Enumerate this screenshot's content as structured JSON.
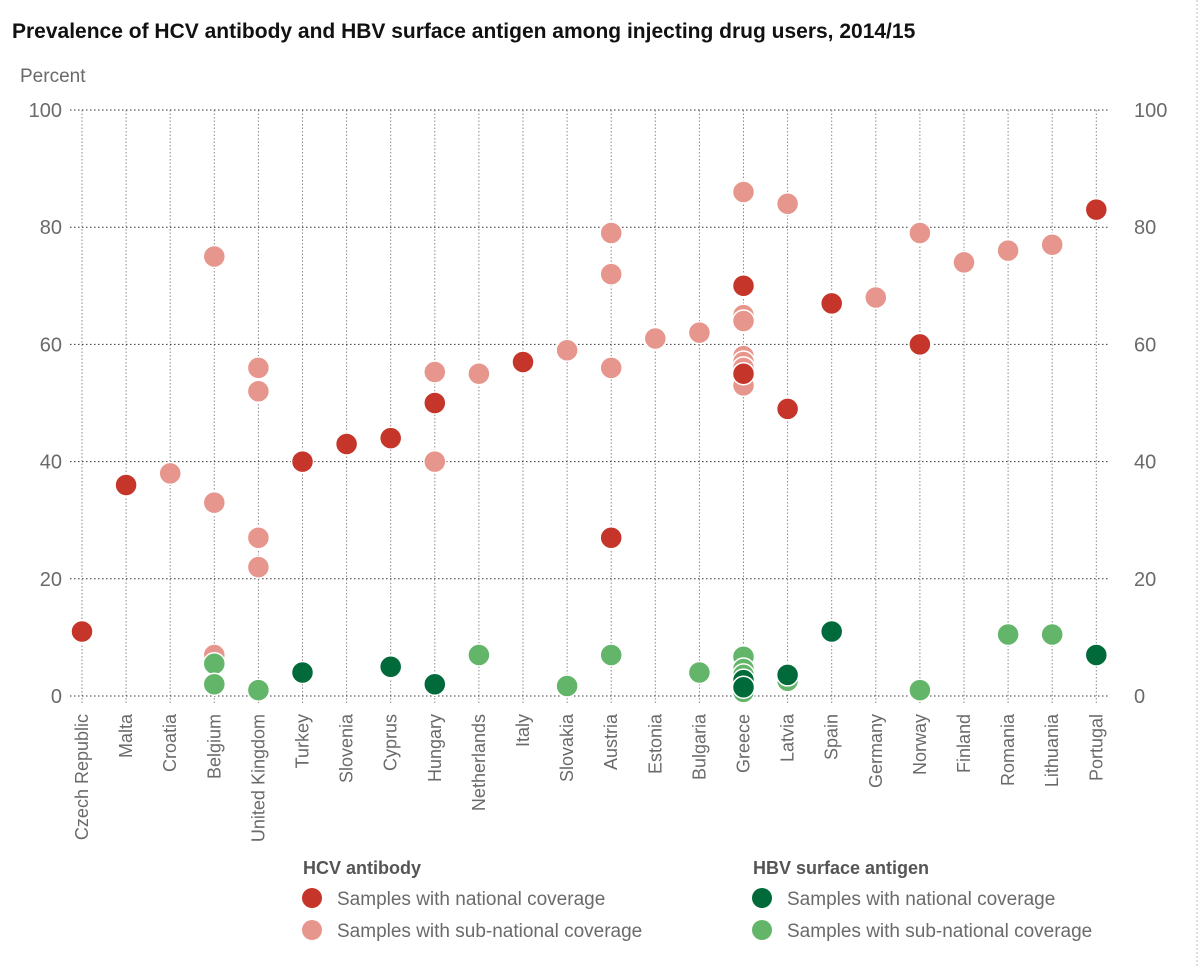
{
  "chart_data": {
    "type": "scatter",
    "title": "Prevalence of HCV antibody and HBV surface antigen among injecting drug users, 2014/15",
    "ylabel": "Percent",
    "xlabel": "",
    "ylim": [
      0,
      100
    ],
    "yticks": [
      "0",
      "20",
      "40",
      "60",
      "80",
      "100"
    ],
    "grid": true,
    "y_axis_sides": "both",
    "categories": [
      "Czech Republic",
      "Malta",
      "Croatia",
      "Belgium",
      "United Kingdom",
      "Turkey",
      "Slovenia",
      "Cyprus",
      "Hungary",
      "Netherlands",
      "Italy",
      "Slovakia",
      "Austria",
      "Estonia",
      "Bulgaria",
      "Greece",
      "Latvia",
      "Spain",
      "Germany",
      "Norway",
      "Finland",
      "Romania",
      "Lithuania",
      "Portugal"
    ],
    "legend": {
      "placement": "bottom",
      "groups": [
        {
          "title": "HCV antibody",
          "items": [
            {
              "key": "hcv_national",
              "label": "Samples with national coverage",
              "color": "#c5352a"
            },
            {
              "key": "hcv_subnational",
              "label": "Samples with sub-national coverage",
              "color": "#e6968c"
            }
          ]
        },
        {
          "title": "HBV surface antigen",
          "items": [
            {
              "key": "hbv_national",
              "label": "Samples with national coverage",
              "color": "#006a3a"
            },
            {
              "key": "hbv_subnational",
              "label": "Samples with sub-national coverage",
              "color": "#63b56a"
            }
          ]
        }
      ]
    },
    "series": [
      {
        "name": "HCV antibody - Samples with sub-national coverage",
        "key": "hcv_subnational",
        "color": "#e6968c",
        "points": [
          {
            "x": "Croatia",
            "y": 38
          },
          {
            "x": "Belgium",
            "y": 75
          },
          {
            "x": "Belgium",
            "y": 33
          },
          {
            "x": "Belgium",
            "y": 7
          },
          {
            "x": "United Kingdom",
            "y": 56
          },
          {
            "x": "United Kingdom",
            "y": 52
          },
          {
            "x": "United Kingdom",
            "y": 27
          },
          {
            "x": "United Kingdom",
            "y": 22
          },
          {
            "x": "Hungary",
            "y": 55.3
          },
          {
            "x": "Hungary",
            "y": 40
          },
          {
            "x": "Netherlands",
            "y": 55
          },
          {
            "x": "Slovakia",
            "y": 59
          },
          {
            "x": "Austria",
            "y": 79
          },
          {
            "x": "Austria",
            "y": 72
          },
          {
            "x": "Austria",
            "y": 56
          },
          {
            "x": "Estonia",
            "y": 61
          },
          {
            "x": "Bulgaria",
            "y": 62
          },
          {
            "x": "Greece",
            "y": 86
          },
          {
            "x": "Greece",
            "y": 65
          },
          {
            "x": "Greece",
            "y": 64
          },
          {
            "x": "Greece",
            "y": 58
          },
          {
            "x": "Greece",
            "y": 57
          },
          {
            "x": "Greece",
            "y": 56
          },
          {
            "x": "Greece",
            "y": 53
          },
          {
            "x": "Latvia",
            "y": 84
          },
          {
            "x": "Germany",
            "y": 68
          },
          {
            "x": "Norway",
            "y": 79
          },
          {
            "x": "Finland",
            "y": 74
          },
          {
            "x": "Romania",
            "y": 76
          },
          {
            "x": "Lithuania",
            "y": 77
          }
        ]
      },
      {
        "name": "HCV antibody - Samples with national coverage",
        "key": "hcv_national",
        "color": "#c5352a",
        "points": [
          {
            "x": "Czech Republic",
            "y": 11
          },
          {
            "x": "Malta",
            "y": 36
          },
          {
            "x": "Turkey",
            "y": 40
          },
          {
            "x": "Slovenia",
            "y": 43
          },
          {
            "x": "Cyprus",
            "y": 44
          },
          {
            "x": "Hungary",
            "y": 50
          },
          {
            "x": "Italy",
            "y": 57
          },
          {
            "x": "Austria",
            "y": 27
          },
          {
            "x": "Greece",
            "y": 70
          },
          {
            "x": "Greece",
            "y": 55
          },
          {
            "x": "Latvia",
            "y": 49
          },
          {
            "x": "Spain",
            "y": 67
          },
          {
            "x": "Norway",
            "y": 60
          },
          {
            "x": "Portugal",
            "y": 83
          }
        ]
      },
      {
        "name": "HBV surface antigen - Samples with sub-national coverage",
        "key": "hbv_subnational",
        "color": "#63b56a",
        "points": [
          {
            "x": "Belgium",
            "y": 5.5
          },
          {
            "x": "Belgium",
            "y": 2
          },
          {
            "x": "United Kingdom",
            "y": 1
          },
          {
            "x": "Netherlands",
            "y": 7
          },
          {
            "x": "Slovakia",
            "y": 1.7
          },
          {
            "x": "Austria",
            "y": 7
          },
          {
            "x": "Bulgaria",
            "y": 4
          },
          {
            "x": "Greece",
            "y": 6.7
          },
          {
            "x": "Greece",
            "y": 4.6
          },
          {
            "x": "Greece",
            "y": 3.6
          },
          {
            "x": "Greece",
            "y": 0.7
          },
          {
            "x": "Latvia",
            "y": 2.6
          },
          {
            "x": "Norway",
            "y": 1
          },
          {
            "x": "Romania",
            "y": 10.5
          },
          {
            "x": "Lithuania",
            "y": 10.5
          }
        ]
      },
      {
        "name": "HBV surface antigen - Samples with national coverage",
        "key": "hbv_national",
        "color": "#006a3a",
        "points": [
          {
            "x": "Turkey",
            "y": 4
          },
          {
            "x": "Cyprus",
            "y": 5
          },
          {
            "x": "Hungary",
            "y": 2
          },
          {
            "x": "Greece",
            "y": 2.7
          },
          {
            "x": "Greece",
            "y": 1.5
          },
          {
            "x": "Latvia",
            "y": 3.6
          },
          {
            "x": "Spain",
            "y": 11
          },
          {
            "x": "Portugal",
            "y": 7
          }
        ]
      }
    ]
  }
}
